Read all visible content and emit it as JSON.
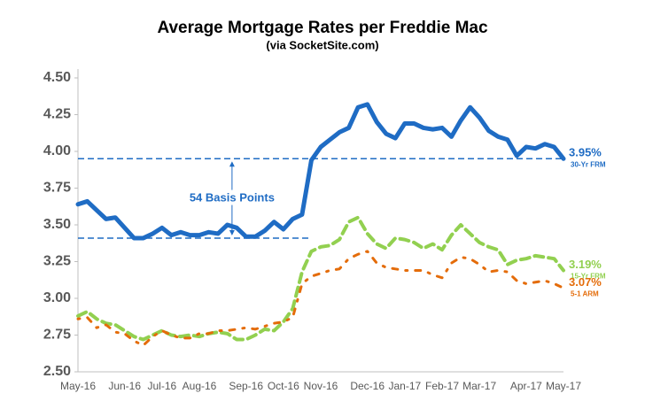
{
  "chart_data": {
    "type": "line",
    "title": "Average Mortgage Rates per Freddie Mac",
    "subtitle": "(via SocketSite.com)",
    "categories": [
      "May-16",
      null,
      null,
      null,
      null,
      "Jun-16",
      null,
      null,
      null,
      "Jul-16",
      null,
      null,
      null,
      "Aug-16",
      null,
      null,
      null,
      null,
      "Sep-16",
      null,
      null,
      null,
      "Oct-16",
      null,
      null,
      null,
      "Nov-16",
      null,
      null,
      null,
      null,
      "Dec-16",
      null,
      null,
      null,
      "Jan-17",
      null,
      null,
      null,
      "Feb-17",
      null,
      null,
      null,
      "Mar-17",
      null,
      null,
      null,
      null,
      "Apr-17",
      null,
      null,
      null,
      "May-17"
    ],
    "series": [
      {
        "name": "30-Yr FRM",
        "color": "#1f6cc4",
        "dash": "solid",
        "values": [
          3.64,
          3.66,
          3.6,
          3.54,
          3.55,
          3.48,
          3.41,
          3.41,
          3.44,
          3.48,
          3.43,
          3.45,
          3.43,
          3.43,
          3.45,
          3.44,
          3.5,
          3.48,
          3.42,
          3.42,
          3.46,
          3.52,
          3.47,
          3.54,
          3.57,
          3.94,
          4.03,
          4.08,
          4.13,
          4.16,
          4.3,
          4.32,
          4.2,
          4.12,
          4.09,
          4.19,
          4.19,
          4.16,
          4.15,
          4.16,
          4.1,
          4.21,
          4.3,
          4.23,
          4.14,
          4.1,
          4.08,
          3.97,
          4.03,
          4.02,
          4.05,
          4.03,
          3.95
        ],
        "value_labels": [
          null,
          null,
          null,
          null,
          null,
          null,
          null,
          null,
          null,
          null,
          null,
          null,
          null,
          null,
          null,
          null,
          null,
          null,
          null,
          null,
          null,
          null,
          null,
          null,
          null,
          null,
          null,
          null,
          null,
          null,
          null,
          null,
          null,
          null,
          null,
          null,
          null,
          null,
          null,
          null,
          null,
          null,
          null,
          null,
          null,
          null,
          null,
          null,
          null,
          null,
          null,
          null,
          "3.95%"
        ]
      },
      {
        "name": "15-Yr FRM",
        "color": "#92d050",
        "dash": "dashed",
        "values": [
          2.88,
          2.91,
          2.86,
          2.83,
          2.82,
          2.78,
          2.74,
          2.72,
          2.75,
          2.78,
          2.75,
          2.74,
          2.75,
          2.74,
          2.76,
          2.77,
          2.76,
          2.72,
          2.72,
          2.75,
          2.79,
          2.78,
          2.84,
          2.93,
          3.18,
          3.32,
          3.35,
          3.36,
          3.4,
          3.52,
          3.55,
          3.44,
          3.37,
          3.34,
          3.41,
          3.4,
          3.38,
          3.34,
          3.37,
          3.33,
          3.43,
          3.5,
          3.44,
          3.38,
          3.35,
          3.33,
          3.23,
          3.26,
          3.27,
          3.29,
          3.28,
          3.27,
          3.19
        ],
        "value_labels": [
          null,
          null,
          null,
          null,
          null,
          null,
          null,
          null,
          null,
          null,
          null,
          null,
          null,
          null,
          null,
          null,
          null,
          null,
          null,
          null,
          null,
          null,
          null,
          null,
          null,
          null,
          null,
          null,
          null,
          null,
          null,
          null,
          null,
          null,
          null,
          null,
          null,
          null,
          null,
          null,
          null,
          null,
          null,
          null,
          null,
          null,
          null,
          null,
          null,
          null,
          null,
          null,
          "3.19%"
        ]
      },
      {
        "name": "5-1 ARM",
        "color": "#e46c0a",
        "dash": "dashdot",
        "values": [
          2.86,
          2.87,
          2.8,
          2.82,
          2.77,
          2.76,
          2.71,
          2.68,
          2.74,
          2.78,
          2.75,
          2.73,
          2.73,
          2.76,
          2.76,
          2.78,
          2.78,
          2.79,
          2.8,
          2.79,
          2.81,
          2.83,
          2.84,
          2.87,
          3.1,
          3.15,
          3.17,
          3.19,
          3.2,
          3.27,
          3.3,
          3.32,
          3.24,
          3.21,
          3.2,
          3.19,
          3.19,
          3.19,
          3.16,
          3.14,
          3.24,
          3.28,
          3.27,
          3.23,
          3.18,
          3.19,
          3.18,
          3.12,
          3.1,
          3.11,
          3.12,
          3.1,
          3.07
        ],
        "value_labels": [
          null,
          null,
          null,
          null,
          null,
          null,
          null,
          null,
          null,
          null,
          null,
          null,
          null,
          null,
          null,
          null,
          null,
          null,
          null,
          null,
          null,
          null,
          null,
          null,
          null,
          null,
          null,
          null,
          null,
          null,
          null,
          null,
          null,
          null,
          null,
          null,
          null,
          null,
          null,
          null,
          null,
          null,
          null,
          null,
          null,
          null,
          null,
          null,
          null,
          null,
          null,
          null,
          "3.07%"
        ]
      }
    ],
    "reference_lines": [
      {
        "value": 3.95
      },
      {
        "value": 3.41
      }
    ],
    "annotation": "54 Basis Points",
    "ylim": [
      2.5,
      4.5
    ],
    "yticks": [
      {
        "value": 2.5,
        "label": "2.50"
      },
      {
        "value": 2.75,
        "label": "2.75"
      },
      {
        "value": 3.0,
        "label": "3.00"
      },
      {
        "value": 3.25,
        "label": "3.25"
      },
      {
        "value": 3.5,
        "label": "3.50"
      },
      {
        "value": 3.75,
        "label": "3.75"
      },
      {
        "value": 4.0,
        "label": "4.00"
      },
      {
        "value": 4.25,
        "label": "4.25"
      },
      {
        "value": 4.5,
        "label": "4.50"
      }
    ],
    "grid": false
  }
}
